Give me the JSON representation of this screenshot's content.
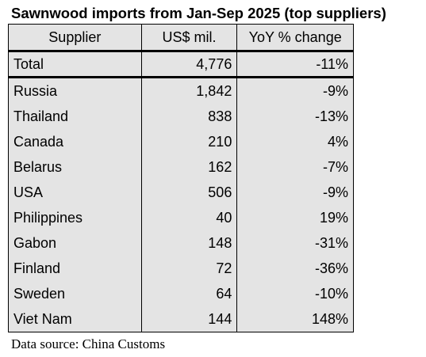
{
  "title": "Sawnwood imports from Jan-Sep 2025 (top suppliers)",
  "headers": [
    "Supplier",
    "US$ mil.",
    "YoY % change"
  ],
  "total": {
    "supplier": "Total",
    "value": "4,776",
    "change": "-11%"
  },
  "rows": [
    {
      "supplier": "Russia",
      "value": "1,842",
      "change": "-9%"
    },
    {
      "supplier": "Thailand",
      "value": "838",
      "change": "-13%"
    },
    {
      "supplier": "Canada",
      "value": "210",
      "change": "4%"
    },
    {
      "supplier": "Belarus",
      "value": "162",
      "change": "-7%"
    },
    {
      "supplier": "USA",
      "value": "506",
      "change": "-9%"
    },
    {
      "supplier": "Philippines",
      "value": "40",
      "change": "19%"
    },
    {
      "supplier": "Gabon",
      "value": "148",
      "change": "-31%"
    },
    {
      "supplier": "Finland",
      "value": "72",
      "change": "-36%"
    },
    {
      "supplier": "Sweden",
      "value": "64",
      "change": "-10%"
    },
    {
      "supplier": "Viet Nam",
      "value": "144",
      "change": "148%"
    }
  ],
  "source": "Data source: China Customs",
  "colors": {
    "table_background": "#e4e4e4",
    "border": "#000000"
  }
}
